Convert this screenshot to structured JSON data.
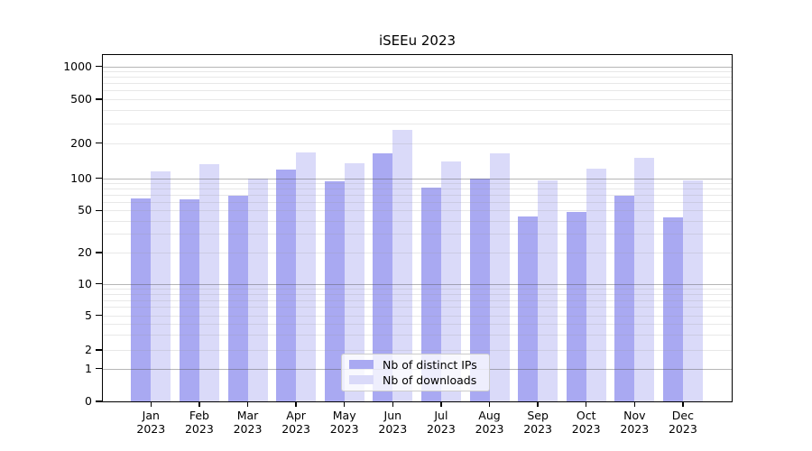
{
  "title": "iSEEu 2023",
  "chart_data": {
    "type": "bar",
    "title": "iSEEu 2023",
    "yscale": "symlog",
    "grid": "both",
    "categories": [
      "Jan",
      "Feb",
      "Mar",
      "Apr",
      "May",
      "Jun",
      "Jul",
      "Aug",
      "Sep",
      "Oct",
      "Nov",
      "Dec"
    ],
    "year_label": "2023",
    "series": [
      {
        "name": "Nb of distinct IPs",
        "color": "#a9a9f2",
        "values": [
          65,
          64,
          68,
          118,
          93,
          163,
          81,
          99,
          44,
          48,
          68,
          43
        ]
      },
      {
        "name": "Nb of downloads",
        "color": "#dadaf9",
        "values": [
          114,
          131,
          100,
          166,
          134,
          263,
          140,
          164,
          95,
          121,
          148,
          95
        ]
      }
    ],
    "yticks": [
      0,
      1,
      2,
      5,
      10,
      20,
      50,
      100,
      200,
      500,
      1000
    ],
    "ylim": [
      0,
      1290
    ],
    "legend_position": "lower center"
  }
}
